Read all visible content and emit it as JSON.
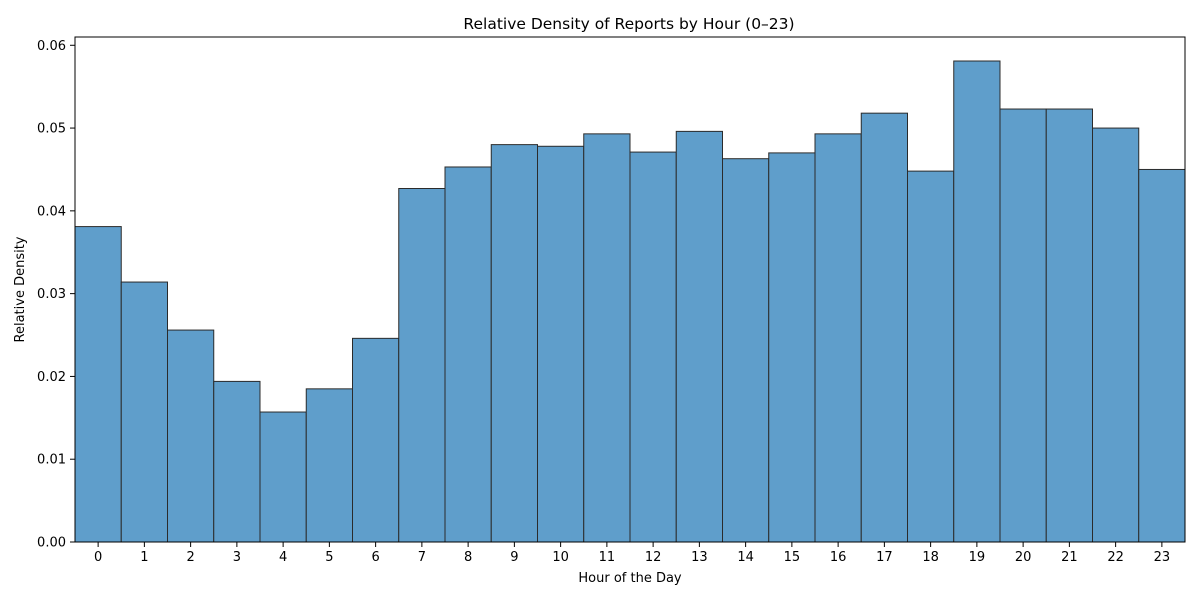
{
  "chart_data": {
    "type": "bar",
    "title": "Relative Density of Reports by Hour (0–23)",
    "xlabel": "Hour of the Day",
    "ylabel": "Relative Density",
    "categories": [
      "0",
      "1",
      "2",
      "3",
      "4",
      "5",
      "6",
      "7",
      "8",
      "9",
      "10",
      "11",
      "12",
      "13",
      "14",
      "15",
      "16",
      "17",
      "18",
      "19",
      "20",
      "21",
      "22",
      "23"
    ],
    "values": [
      0.0381,
      0.0314,
      0.0256,
      0.0194,
      0.0157,
      0.0185,
      0.0246,
      0.0427,
      0.0453,
      0.048,
      0.0478,
      0.0493,
      0.0471,
      0.0496,
      0.0463,
      0.047,
      0.0493,
      0.0518,
      0.0448,
      0.0581,
      0.0523,
      0.0523,
      0.05,
      0.045
    ],
    "xlim": [
      -0.5,
      23.5
    ],
    "ylim": [
      0,
      0.061
    ],
    "yticks": [
      "0.00",
      "0.01",
      "0.02",
      "0.03",
      "0.04",
      "0.05",
      "0.06"
    ],
    "grid": false,
    "bar_color": "#5f9ecb",
    "bar_edge_color": "#2b2b2b",
    "axis_color": "#000000",
    "background_color": "#ffffff"
  }
}
